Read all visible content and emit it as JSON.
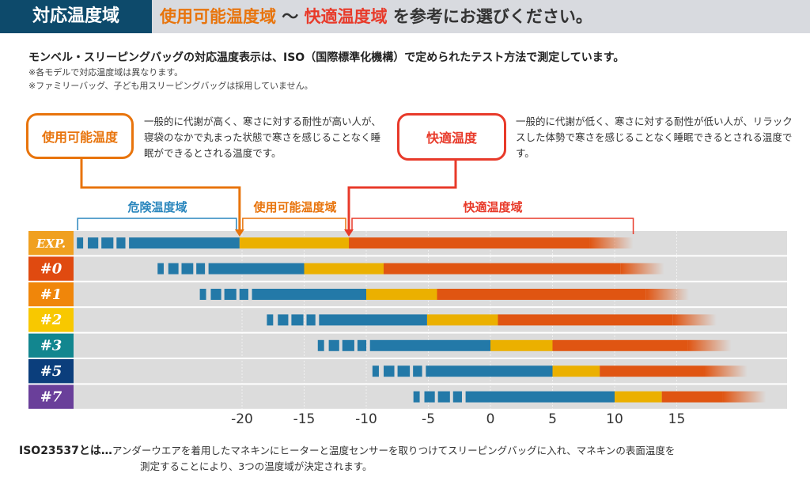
{
  "header": {
    "tag": "対応温度域",
    "part1": "使用可能温度域",
    "sep": " ～ ",
    "part2": "快適温度域",
    "part3": " を参考にお選びください。"
  },
  "intro": {
    "lead": "モンベル・スリーピングバッグの対応温度表示は、ISO（国際標準化機構）で定められたテスト方法で測定しています。",
    "note1": "※各モデルで対応温度域は異なります。",
    "note2": "※ファミリーバッグ、子ども用スリーピングバッグは採用していません。"
  },
  "legend": {
    "usable_box": "使用可能温度",
    "usable_desc": "一般的に代謝が高く、寒さに対する耐性が高い人が、寝袋のなかで丸まった状態で寒さを感じることなく睡眠ができるとされる温度です。",
    "comfort_box": "快適温度",
    "comfort_desc": "一般的に代謝が低く、寒さに対する耐性が低い人が、リラックスした体勢で寒さを感じることなく睡眠できるとされる温度です。"
  },
  "zones": {
    "danger": "危険温度域",
    "usable": "使用可能温度域",
    "comfort": "快適温度域"
  },
  "colors": {
    "danger": "#2379a8",
    "usable": "#ebb000",
    "comfort": "#e05512",
    "row_bg": "#dcdcdc",
    "orange": "#e8740c",
    "red": "#e83a2a"
  },
  "chart_data": {
    "type": "bar",
    "title": "対応温度域",
    "xlabel": "",
    "xunit": "°C",
    "xlim": [
      -35,
      23
    ],
    "xticks": [
      -20,
      -15,
      -10,
      -5,
      0,
      5,
      10,
      15
    ],
    "xtick_labels": [
      "-20",
      "-15",
      "-10",
      "-5",
      "0",
      "5",
      "10",
      "15"
    ],
    "series_names": [
      "危険温度域",
      "使用可能温度域",
      "快適温度域"
    ],
    "rows": [
      {
        "label": "EXP.",
        "color": "#f0a020",
        "danger_dash_start": -33.3,
        "danger_start": -29.1,
        "usable_start": -20.2,
        "comfort_start": -11.4,
        "end": 11.5
      },
      {
        "label": "#0",
        "color": "#e04a10",
        "danger_dash_start": -26.8,
        "danger_start": -22.7,
        "usable_start": -15,
        "comfort_start": -8.6,
        "end": 14
      },
      {
        "label": "#1",
        "color": "#f0860a",
        "danger_dash_start": -23.4,
        "danger_start": -19.2,
        "usable_start": -10,
        "comfort_start": -4.3,
        "end": 16
      },
      {
        "label": "#2",
        "color": "#f8c800",
        "danger_dash_start": -18,
        "danger_start": -13.8,
        "usable_start": -5.1,
        "comfort_start": 0.6,
        "end": 18.2
      },
      {
        "label": "#3",
        "color": "#12868f",
        "danger_dash_start": -13.9,
        "danger_start": -9.7,
        "usable_start": 0,
        "comfort_start": 5,
        "end": 19.4
      },
      {
        "label": "#5",
        "color": "#0b3e7c",
        "danger_dash_start": -9.5,
        "danger_start": -5.2,
        "usable_start": 5,
        "comfort_start": 8.8,
        "end": 20.7
      },
      {
        "label": "#7",
        "color": "#6a3f9a",
        "danger_dash_start": -6.2,
        "danger_start": -2,
        "usable_start": 10,
        "comfort_start": 13.8,
        "end": 22.2
      }
    ]
  },
  "footer": {
    "term": "ISO23537とは…",
    "line1": "アンダーウエアを着用したマネキンにヒーターと温度センサーを取りつけてスリーピングバッグに入れ、マネキンの表面温度を",
    "line2": "測定することにより、3つの温度域が決定されます。"
  }
}
